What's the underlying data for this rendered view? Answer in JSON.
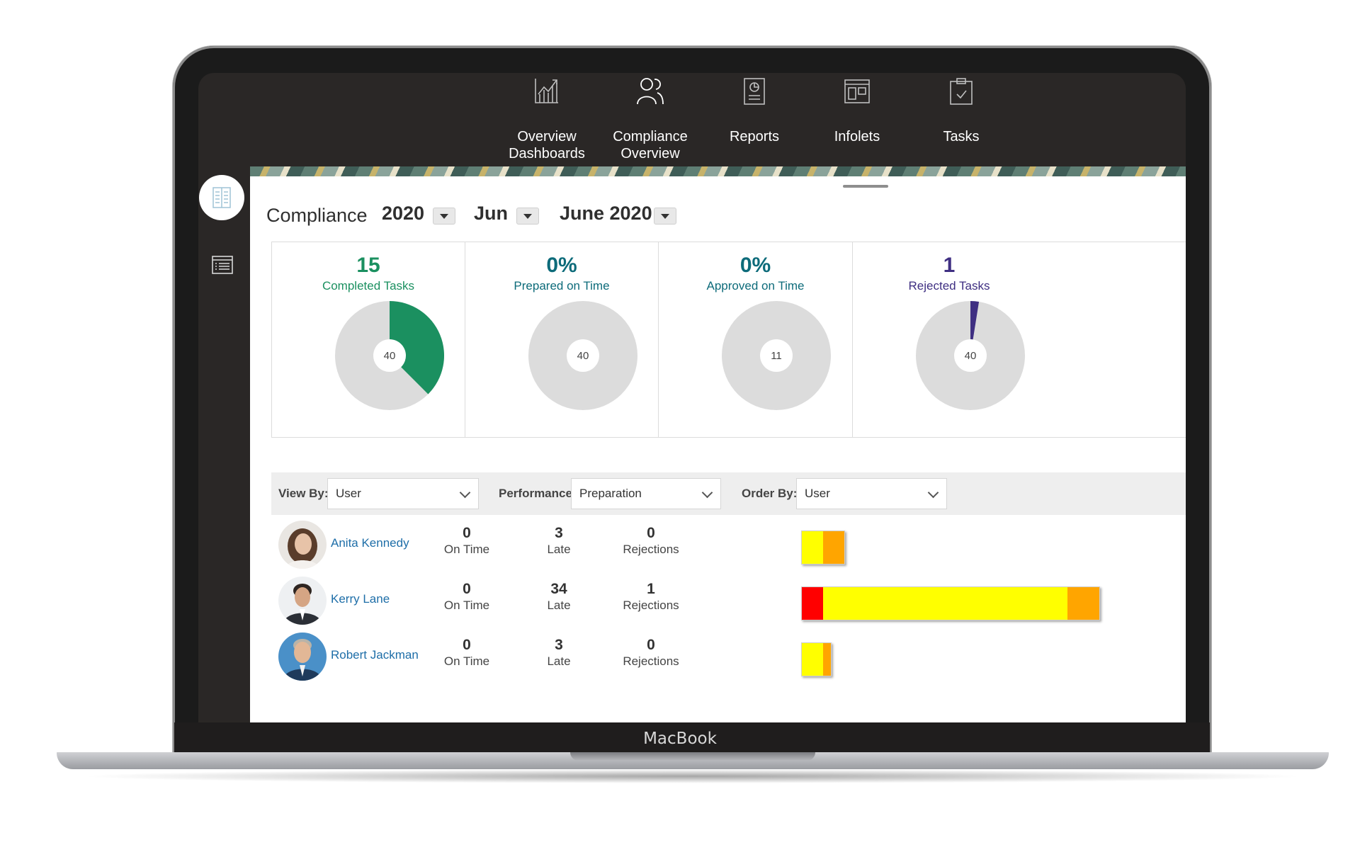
{
  "device": {
    "brand": "MacBook"
  },
  "nav": {
    "items": [
      {
        "label": "Overview\nDashboards",
        "icon": "line-chart-icon"
      },
      {
        "label": "Compliance\nOverview",
        "icon": "users-icon"
      },
      {
        "label": "Reports",
        "icon": "report-icon"
      },
      {
        "label": "Infolets",
        "icon": "infolets-icon"
      },
      {
        "label": "Tasks",
        "icon": "clipboard-icon"
      }
    ]
  },
  "sidebar": {
    "icons": [
      "book-icon",
      "list-icon"
    ]
  },
  "header": {
    "title": "Compliance",
    "year": "2020",
    "month": "Jun",
    "period": "June 2020"
  },
  "colors": {
    "green": "#1b9060",
    "teal": "#0d6b7a",
    "purple": "#3f2f82",
    "grey": "#dcdcdc",
    "red": "#ff0000",
    "yellow": "#ffff00",
    "orange": "#ffa500"
  },
  "cards": [
    {
      "value": "15",
      "label": "Completed Tasks",
      "center": "40",
      "fraction": 0.375
    },
    {
      "value": "0%",
      "label": "Prepared on Time",
      "center": "40",
      "fraction": 0
    },
    {
      "value": "0%",
      "label": "Approved on Time",
      "center": "11",
      "fraction": 0
    },
    {
      "value": "1",
      "label": "Rejected Tasks",
      "center": "40",
      "fraction": 0.025
    }
  ],
  "filters": {
    "view_by_label": "View By:",
    "view_by_value": "User",
    "performance_label": "Performance:",
    "performance_value": "Preparation",
    "order_by_label": "Order By:",
    "order_by_value": "User"
  },
  "users": [
    {
      "name": "Anita Kennedy",
      "on_time": "0",
      "late": "3",
      "rejections": "0",
      "on_time_label": "On Time",
      "late_label": "Late",
      "rejections_label": "Rejections",
      "bar": [
        {
          "color": "yellow",
          "value": 1
        },
        {
          "color": "orange",
          "value": 1
        }
      ]
    },
    {
      "name": "Kerry Lane",
      "on_time": "0",
      "late": "34",
      "rejections": "1",
      "on_time_label": "On Time",
      "late_label": "Late",
      "rejections_label": "Rejections",
      "bar": [
        {
          "color": "red",
          "value": 1
        },
        {
          "color": "yellow",
          "value": 11.5
        },
        {
          "color": "orange",
          "value": 1.5
        }
      ]
    },
    {
      "name": "Robert Jackman",
      "on_time": "0",
      "late": "3",
      "rejections": "0",
      "on_time_label": "On Time",
      "late_label": "Late",
      "rejections_label": "Rejections",
      "bar": [
        {
          "color": "yellow",
          "value": 1
        },
        {
          "color": "orange",
          "value": 0.35
        }
      ]
    }
  ]
}
